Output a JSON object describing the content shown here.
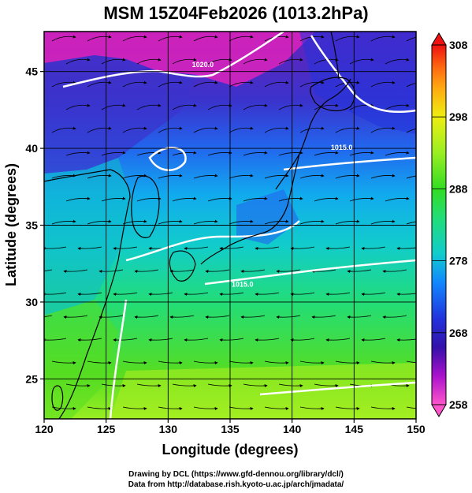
{
  "chart_data": {
    "type": "heatmap",
    "title": "MSM 15Z04Feb2026 (1013.2hPa)",
    "xlabel": "Longitude (degrees)",
    "ylabel": "Latitude  (degrees)",
    "xlim": [
      120,
      150
    ],
    "ylim": [
      22.4,
      47.6
    ],
    "x_ticks": [
      120,
      125,
      130,
      135,
      140,
      145,
      150
    ],
    "y_ticks": [
      25,
      30,
      35,
      40,
      45
    ],
    "grid": true,
    "colorbar": {
      "range": [
        258,
        308
      ],
      "ticks": [
        258,
        268,
        278,
        288,
        298,
        308
      ],
      "stops": [
        {
          "value": 258,
          "color": "#ff55cc"
        },
        {
          "value": 262,
          "color": "#aa11cc"
        },
        {
          "value": 266,
          "color": "#3311aa"
        },
        {
          "value": 270,
          "color": "#2233dd"
        },
        {
          "value": 275,
          "color": "#1188ff"
        },
        {
          "value": 279,
          "color": "#11cccc"
        },
        {
          "value": 284,
          "color": "#22dd77"
        },
        {
          "value": 288,
          "color": "#33dd22"
        },
        {
          "value": 293,
          "color": "#99ee22"
        },
        {
          "value": 298,
          "color": "#eeee11"
        },
        {
          "value": 302,
          "color": "#ffaa11"
        },
        {
          "value": 305,
          "color": "#ff6611"
        },
        {
          "value": 308,
          "color": "#ee1111"
        }
      ]
    },
    "contour_labels": [
      {
        "text": "1020.0",
        "lon": 132.8,
        "lat": 45.3
      },
      {
        "text": "1015.0",
        "lon": 144.0,
        "lat": 39.9
      },
      {
        "text": "1015.0",
        "lon": 136.0,
        "lat": 31.0
      }
    ]
  },
  "credits": {
    "line1": "Drawing by DCL (https://www.gfd-dennou.org/library/dcl/)",
    "line2": "Data from http://database.rish.kyoto-u.ac.jp/arch/jmadata/"
  },
  "colors": {
    "grid": "#000000",
    "contour": "#ffffff",
    "coast": "#000000"
  }
}
